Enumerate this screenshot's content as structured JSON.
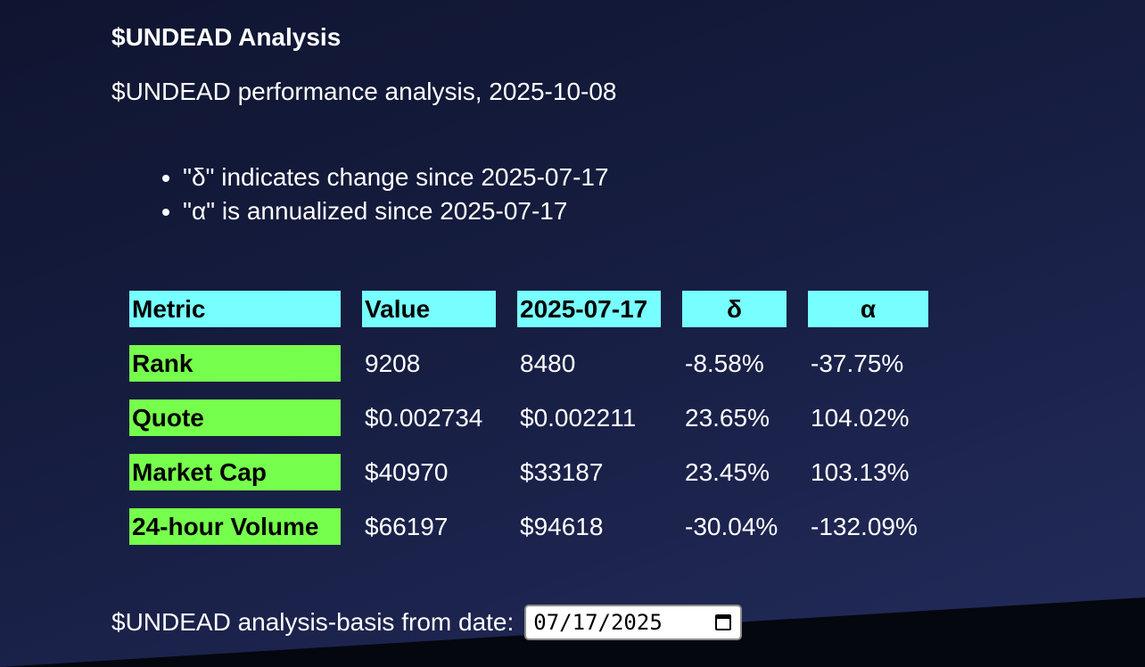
{
  "page": {
    "title": "$UNDEAD Analysis",
    "subtitle": "$UNDEAD performance analysis, 2025-10-08"
  },
  "notes": [
    "\"δ\" indicates change since 2025-07-17",
    "\"α\" is annualized since 2025-07-17"
  ],
  "table": {
    "headers": [
      "Metric",
      "Value",
      "2025-07-17",
      "δ",
      "α"
    ],
    "rows": [
      {
        "metric": "Rank",
        "value": "9208",
        "basis": "8480",
        "delta": "-8.58%",
        "alpha": "-37.75%"
      },
      {
        "metric": "Quote",
        "value": "$0.002734",
        "basis": "$0.002211",
        "delta": "23.65%",
        "alpha": "104.02%"
      },
      {
        "metric": "Market Cap",
        "value": "$40970",
        "basis": "$33187",
        "delta": "23.45%",
        "alpha": "103.13%"
      },
      {
        "metric": "24-hour Volume",
        "value": "$66197",
        "basis": "$94618",
        "delta": "-30.04%",
        "alpha": "-132.09%"
      }
    ]
  },
  "basis_form": {
    "label": "$UNDEAD analysis-basis from date:",
    "date_value": "07/17/2025"
  },
  "colors": {
    "header_bg": "#77ffff",
    "metric_bg": "#77ff4d",
    "background": "#151c3e"
  }
}
